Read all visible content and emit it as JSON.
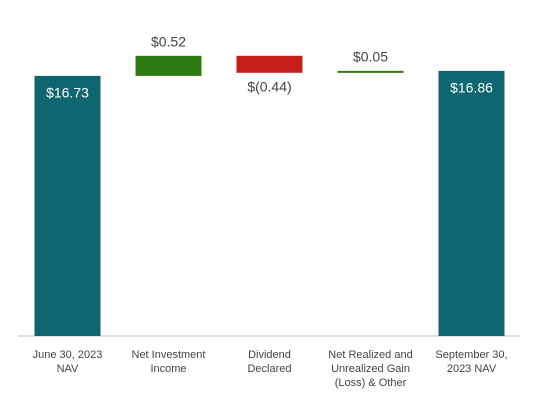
{
  "chart_data": {
    "type": "waterfall",
    "categories": [
      [
        "June 30, 2023",
        "NAV"
      ],
      [
        "Net Investment",
        "Income"
      ],
      [
        "Dividend",
        "Declared"
      ],
      [
        "Net Realized and",
        "Unrealized Gain",
        "(Loss) & Other"
      ],
      [
        "September 30,",
        "2023 NAV"
      ]
    ],
    "values": [
      16.73,
      0.52,
      -0.44,
      0.05,
      16.86
    ],
    "value_labels": [
      "$16.73",
      "$0.52",
      "$(0.44)",
      "$0.05",
      "$16.86"
    ],
    "kinds": [
      "total",
      "delta",
      "delta",
      "delta",
      "total"
    ],
    "colors": {
      "total": "#0e6670",
      "increase": "#2f7a10",
      "decrease": "#c42019"
    },
    "ylim": [
      10,
      17.4
    ]
  }
}
